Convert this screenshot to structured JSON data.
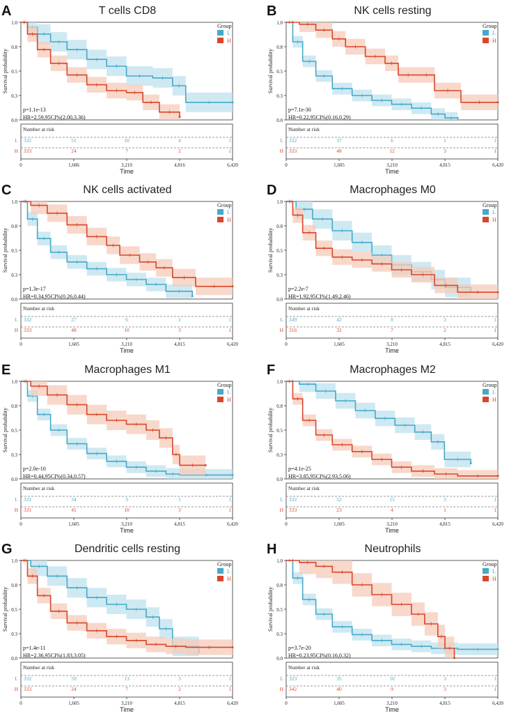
{
  "figure": {
    "colors": {
      "low": "#45a9c9",
      "high": "#d9462a",
      "low_band": "#bfe1ee",
      "high_band": "#f6cbb9"
    },
    "common": {
      "group_title": "Group",
      "risk_title": "Number at risk",
      "xlabel": "Time",
      "ylabel": "Survival probability",
      "x_ticks": [
        "0",
        "1,606",
        "3,210",
        "4,816",
        "6,420"
      ],
      "y_ticks": [
        "0.0",
        "0.3",
        "0.5",
        "0.8",
        "1.0"
      ]
    }
  },
  "chart_data": [
    {
      "type": "line",
      "panel_letter": "A",
      "title": "T cells CD8",
      "x_ticks": [
        "0",
        "1,606",
        "3,210",
        "4,816",
        "6,420"
      ],
      "y_ticks": [
        "0.0",
        "0.3",
        "0.5",
        "0.8",
        "1.0"
      ],
      "xlim": [
        0,
        6420
      ],
      "ylim": [
        0,
        1
      ],
      "legend": [
        "L",
        "H"
      ],
      "p_text": "p=1.1e-13",
      "hr_text": "HR=2.59,95CI%(2.00,3.36)",
      "series": [
        {
          "name": "L",
          "x": [
            0,
            200,
            500,
            900,
            1400,
            2000,
            2600,
            3200,
            4000,
            4600,
            5000,
            6420
          ],
          "y": [
            1.0,
            0.95,
            0.88,
            0.8,
            0.72,
            0.62,
            0.55,
            0.45,
            0.43,
            0.35,
            0.18,
            0.18
          ],
          "band": 0.1
        },
        {
          "name": "H",
          "x": [
            0,
            200,
            500,
            900,
            1400,
            2000,
            2600,
            3200,
            3700,
            4200,
            4816
          ],
          "y": [
            1.0,
            0.88,
            0.72,
            0.58,
            0.46,
            0.36,
            0.3,
            0.28,
            0.18,
            0.08,
            0.03
          ],
          "band": 0.08
        }
      ],
      "risk_table": [
        {
          "group": "L",
          "values": [
            "332",
            "51",
            "10",
            "4",
            "1"
          ]
        },
        {
          "group": "H",
          "values": [
            "333",
            "24",
            "7",
            "2",
            "1"
          ]
        }
      ]
    },
    {
      "type": "line",
      "panel_letter": "B",
      "title": "NK cells resting",
      "x_ticks": [
        "0",
        "1,605",
        "3,210",
        "4,815",
        "6,420"
      ],
      "y_ticks": [
        "0.0",
        "0.3",
        "0.5",
        "0.8",
        "1.0"
      ],
      "xlim": [
        0,
        6420
      ],
      "ylim": [
        0,
        1
      ],
      "legend": [
        "L",
        "H"
      ],
      "p_text": "p=7.1e-30",
      "hr_text": "HR=0.22,95CI%(0.16,0.29)",
      "series": [
        {
          "name": "L",
          "x": [
            0,
            200,
            500,
            900,
            1400,
            2000,
            2600,
            3200,
            3800,
            4400,
            4815,
            5200
          ],
          "y": [
            1.0,
            0.8,
            0.6,
            0.45,
            0.32,
            0.25,
            0.2,
            0.16,
            0.12,
            0.06,
            0.02,
            0.02
          ],
          "band": 0.06
        },
        {
          "name": "H",
          "x": [
            0,
            400,
            900,
            1400,
            1800,
            2400,
            3000,
            3400,
            4000,
            4500,
            5300,
            6420
          ],
          "y": [
            1.0,
            0.98,
            0.92,
            0.83,
            0.75,
            0.65,
            0.58,
            0.46,
            0.46,
            0.3,
            0.18,
            0.18
          ],
          "band": 0.08
        }
      ],
      "risk_table": [
        {
          "group": "L",
          "values": [
            "332",
            "37",
            "6",
            "1",
            "1"
          ]
        },
        {
          "group": "H",
          "values": [
            "333",
            "48",
            "12",
            "3",
            "1"
          ]
        }
      ]
    },
    {
      "type": "line",
      "panel_letter": "C",
      "title": "NK cells activated",
      "x_ticks": [
        "0",
        "1,605",
        "3,210",
        "4,815",
        "6,420"
      ],
      "y_ticks": [
        "0.0",
        "0.3",
        "0.5",
        "0.8",
        "1.0"
      ],
      "xlim": [
        0,
        6420
      ],
      "ylim": [
        0,
        1
      ],
      "legend": [
        "L",
        "H"
      ],
      "p_text": "p=1.3e-17",
      "hr_text": "HR=0.34,95CI%(0.26,0.44)",
      "series": [
        {
          "name": "L",
          "x": [
            0,
            200,
            500,
            900,
            1400,
            2000,
            2600,
            3200,
            3800,
            4400,
            5200
          ],
          "y": [
            1.0,
            0.82,
            0.62,
            0.48,
            0.38,
            0.31,
            0.25,
            0.2,
            0.15,
            0.08,
            0.03
          ],
          "band": 0.07
        },
        {
          "name": "H",
          "x": [
            0,
            300,
            800,
            1400,
            2000,
            2600,
            3000,
            3600,
            4100,
            4600,
            5300,
            6420
          ],
          "y": [
            1.0,
            0.96,
            0.88,
            0.76,
            0.64,
            0.55,
            0.45,
            0.38,
            0.32,
            0.22,
            0.13,
            0.13
          ],
          "band": 0.09
        }
      ],
      "risk_table": [
        {
          "group": "L",
          "values": [
            "332",
            "27",
            "6",
            "1",
            "1"
          ]
        },
        {
          "group": "H",
          "values": [
            "333",
            "48",
            "10",
            "3",
            "1"
          ]
        }
      ]
    },
    {
      "type": "line",
      "panel_letter": "D",
      "title": "Macrophages M0",
      "x_ticks": [
        "0",
        "1,605",
        "3,210",
        "4,815",
        "6,420"
      ],
      "y_ticks": [
        "0.0",
        "0.3",
        "0.5",
        "0.8",
        "1.0"
      ],
      "xlim": [
        0,
        6420
      ],
      "ylim": [
        0,
        1
      ],
      "legend": [
        "L",
        "H"
      ],
      "p_text": "p=2.2e-7",
      "hr_text": "HR=1.92,95CI%(1.49,2.46)",
      "series": [
        {
          "name": "L",
          "x": [
            0,
            300,
            800,
            1400,
            2000,
            2600,
            3200,
            3800,
            4400,
            4815,
            5600
          ],
          "y": [
            1.0,
            0.92,
            0.82,
            0.7,
            0.58,
            0.45,
            0.35,
            0.28,
            0.2,
            0.12,
            0.08
          ],
          "band": 0.1
        },
        {
          "name": "H",
          "x": [
            0,
            200,
            500,
            900,
            1400,
            2000,
            2600,
            3200,
            3800,
            4500,
            5200,
            6420
          ],
          "y": [
            1.0,
            0.86,
            0.68,
            0.52,
            0.43,
            0.4,
            0.36,
            0.3,
            0.25,
            0.14,
            0.07,
            0.07
          ],
          "band": 0.08
        }
      ],
      "risk_table": [
        {
          "group": "L",
          "values": [
            "349",
            "42",
            "8",
            "3",
            "1"
          ]
        },
        {
          "group": "H",
          "values": [
            "316",
            "32",
            "7",
            "2",
            "1"
          ]
        }
      ]
    },
    {
      "type": "line",
      "panel_letter": "E",
      "title": "Macrophages M1",
      "x_ticks": [
        "0",
        "1,605",
        "3,210",
        "4,815",
        "6,420"
      ],
      "y_ticks": [
        "0.0",
        "0.3",
        "0.5",
        "0.8",
        "1.0"
      ],
      "xlim": [
        0,
        6420
      ],
      "ylim": [
        0,
        1
      ],
      "legend": [
        "L",
        "H"
      ],
      "p_text": "p=2.0e-10",
      "hr_text": "HR=0.44,95CI%(0.34,0.57)",
      "series": [
        {
          "name": "L",
          "x": [
            0,
            200,
            500,
            900,
            1400,
            2000,
            2600,
            3200,
            3800,
            4400,
            4815,
            6420
          ],
          "y": [
            1.0,
            0.85,
            0.66,
            0.5,
            0.36,
            0.26,
            0.18,
            0.12,
            0.08,
            0.05,
            0.04,
            0.04
          ],
          "band": 0.06
        },
        {
          "name": "H",
          "x": [
            0,
            300,
            800,
            1400,
            2000,
            2600,
            3200,
            3800,
            4200,
            4600,
            4815,
            5600
          ],
          "y": [
            1.0,
            0.95,
            0.86,
            0.76,
            0.66,
            0.6,
            0.56,
            0.5,
            0.42,
            0.25,
            0.14,
            0.14
          ],
          "band": 0.1
        }
      ],
      "risk_table": [
        {
          "group": "L",
          "values": [
            "331",
            "34",
            "3",
            "1",
            "1"
          ]
        },
        {
          "group": "H",
          "values": [
            "331",
            "41",
            "10",
            "3",
            "1"
          ]
        }
      ]
    },
    {
      "type": "line",
      "panel_letter": "F",
      "title": "Macrophages M2",
      "x_ticks": [
        "0",
        "1,605",
        "3,210",
        "4,815",
        "6,420"
      ],
      "y_ticks": [
        "0.0",
        "0.3",
        "0.5",
        "0.8",
        "1.0"
      ],
      "xlim": [
        0,
        6420
      ],
      "ylim": [
        0,
        1
      ],
      "legend": [
        "L",
        "H"
      ],
      "p_text": "p=4.1e-25",
      "hr_text": "HR=3.85,95CI%(2.93,5.06)",
      "series": [
        {
          "name": "L",
          "x": [
            0,
            400,
            900,
            1500,
            2100,
            2700,
            3300,
            3900,
            4400,
            4800,
            5600
          ],
          "y": [
            1.0,
            0.97,
            0.9,
            0.8,
            0.7,
            0.62,
            0.55,
            0.48,
            0.38,
            0.2,
            0.16
          ],
          "band": 0.08
        },
        {
          "name": "H",
          "x": [
            0,
            200,
            500,
            900,
            1400,
            2000,
            2600,
            3200,
            3800,
            4500,
            5200,
            6420
          ],
          "y": [
            1.0,
            0.82,
            0.6,
            0.45,
            0.35,
            0.28,
            0.2,
            0.12,
            0.08,
            0.05,
            0.03,
            0.03
          ],
          "band": 0.06
        }
      ],
      "risk_table": [
        {
          "group": "L",
          "values": [
            "332",
            "52",
            "15",
            "3",
            "1"
          ]
        },
        {
          "group": "H",
          "values": [
            "333",
            "23",
            "4",
            "1",
            "1"
          ]
        }
      ]
    },
    {
      "type": "line",
      "panel_letter": "G",
      "title": "Dendritic cells resting",
      "x_ticks": [
        "0",
        "1,605",
        "3,210",
        "4,815",
        "6,420"
      ],
      "y_ticks": [
        "0.0",
        "0.3",
        "0.5",
        "0.8",
        "1.0"
      ],
      "xlim": [
        0,
        6420
      ],
      "ylim": [
        0,
        1
      ],
      "legend": [
        "L",
        "H"
      ],
      "p_text": "p=1.4e-11",
      "hr_text": "HR=2.36,95CI%(1.83,3.05)",
      "series": [
        {
          "name": "L",
          "x": [
            0,
            300,
            800,
            1400,
            2000,
            2600,
            3200,
            3800,
            4200,
            4600,
            5400
          ],
          "y": [
            1.0,
            0.94,
            0.84,
            0.72,
            0.62,
            0.55,
            0.5,
            0.42,
            0.3,
            0.12,
            0.06
          ],
          "band": 0.1
        },
        {
          "name": "H",
          "x": [
            0,
            200,
            500,
            900,
            1400,
            2000,
            2600,
            3200,
            3800,
            4400,
            5000,
            6420
          ],
          "y": [
            1.0,
            0.84,
            0.64,
            0.48,
            0.36,
            0.28,
            0.22,
            0.18,
            0.14,
            0.12,
            0.11,
            0.11
          ],
          "band": 0.08
        }
      ],
      "risk_table": [
        {
          "group": "L",
          "values": [
            "332",
            "59",
            "13",
            "3",
            "1"
          ]
        },
        {
          "group": "H",
          "values": [
            "333",
            "24",
            "7",
            "2",
            "1"
          ]
        }
      ]
    },
    {
      "type": "line",
      "panel_letter": "H",
      "title": "Neutrophils",
      "x_ticks": [
        "0",
        "1,605",
        "3,210",
        "4,815",
        "6,420"
      ],
      "y_ticks": [
        "0.0",
        "0.3",
        "0.5",
        "0.8",
        "1.0"
      ],
      "xlim": [
        0,
        6420
      ],
      "ylim": [
        0,
        1
      ],
      "legend": [
        "L",
        "H"
      ],
      "p_text": "p=3.7e-20",
      "hr_text": "HR=0.23,95CI%(0.16,0.32)",
      "series": [
        {
          "name": "L",
          "x": [
            0,
            200,
            500,
            900,
            1400,
            2000,
            2600,
            3200,
            3800,
            4400,
            5200,
            6420
          ],
          "y": [
            1.0,
            0.82,
            0.6,
            0.45,
            0.32,
            0.24,
            0.18,
            0.14,
            0.12,
            0.1,
            0.09,
            0.09
          ],
          "band": 0.06
        },
        {
          "name": "H",
          "x": [
            0,
            400,
            900,
            1400,
            2000,
            2600,
            3200,
            3800,
            4200,
            4600,
            4815,
            5100
          ],
          "y": [
            1.0,
            0.98,
            0.94,
            0.88,
            0.75,
            0.65,
            0.55,
            0.45,
            0.35,
            0.22,
            0.1,
            0.0
          ],
          "band": 0.12
        }
      ],
      "risk_table": [
        {
          "group": "L",
          "values": [
            "323",
            "35",
            "10",
            "3",
            "1"
          ]
        },
        {
          "group": "H",
          "values": [
            "342",
            "40",
            "9",
            "3",
            "1"
          ]
        }
      ]
    }
  ]
}
